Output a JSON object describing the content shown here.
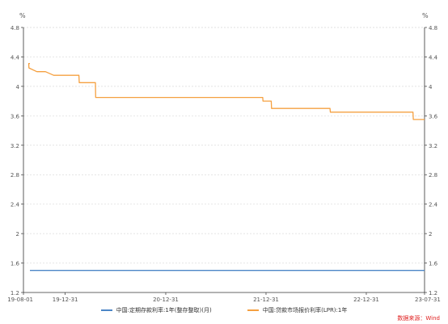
{
  "chart_data": {
    "type": "line",
    "x_ticks": [
      "19-08-01",
      "19-12-31",
      "20-12-31",
      "21-12-31",
      "22-12-31",
      "23-07-31"
    ],
    "x_range": [
      "2019-08-01",
      "2023-07-31"
    ],
    "left_unit": "%",
    "right_unit": "%",
    "y_ticks": [
      "1.2",
      "1.6",
      "2",
      "2.4",
      "2.8",
      "3.2",
      "3.6",
      "4",
      "4.4",
      "4.8"
    ],
    "ylim": [
      1.2,
      4.8
    ],
    "grid": "horizontal dashed",
    "legend_position": "bottom",
    "series": [
      {
        "name": "中国:定期存款利率:1年(整存整取)(月)",
        "color": "#4c86c6",
        "points": [
          [
            "2019-08-01",
            1.5
          ],
          [
            "2023-07-31",
            1.5
          ]
        ]
      },
      {
        "name": "中国:贷款市场报价利率(LPR):1年",
        "color": "#f5a040",
        "points": [
          [
            "2019-08-01",
            4.31
          ],
          [
            "2019-08-20",
            4.31
          ],
          [
            "2019-08-21",
            4.25
          ],
          [
            "2019-09-19",
            4.2
          ],
          [
            "2019-10-20",
            4.2
          ],
          [
            "2019-11-19",
            4.15
          ],
          [
            "2020-02-19",
            4.15
          ],
          [
            "2020-02-20",
            4.05
          ],
          [
            "2020-04-19",
            4.05
          ],
          [
            "2020-04-20",
            3.85
          ],
          [
            "2021-12-19",
            3.85
          ],
          [
            "2021-12-20",
            3.8
          ],
          [
            "2022-01-19",
            3.8
          ],
          [
            "2022-01-20",
            3.7
          ],
          [
            "2022-08-21",
            3.7
          ],
          [
            "2022-08-22",
            3.65
          ],
          [
            "2023-06-19",
            3.65
          ],
          [
            "2023-06-20",
            3.55
          ],
          [
            "2023-07-31",
            3.55
          ]
        ]
      }
    ]
  },
  "source_text": "数据来源：Wind"
}
